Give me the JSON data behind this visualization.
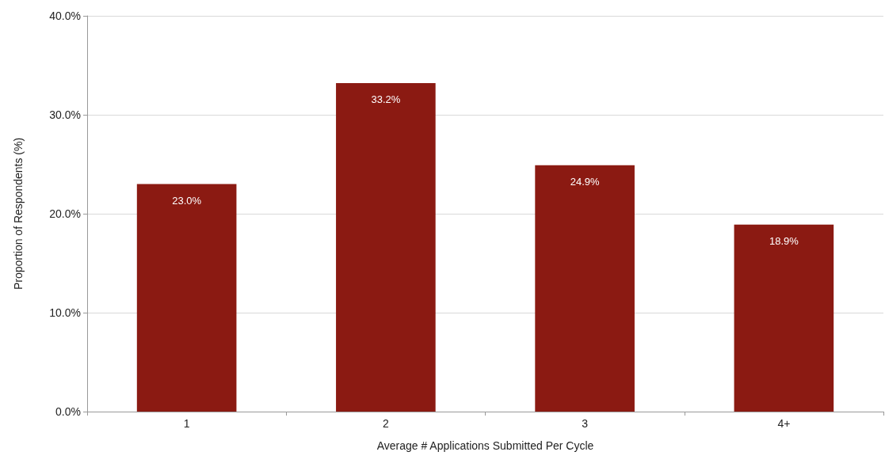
{
  "chart_data": {
    "type": "bar",
    "xlabel": "Average # Applications Submitted Per Cycle",
    "ylabel": "Proportion of Respondents (%)",
    "categories": [
      "1",
      "2",
      "3",
      "4+"
    ],
    "values": [
      23.0,
      33.2,
      24.9,
      18.9
    ],
    "value_labels": [
      "23.0%",
      "33.2%",
      "24.9%",
      "18.9%"
    ],
    "color": "#8b1a12",
    "ylim": [
      0,
      40
    ],
    "yticks": [
      {
        "value": 0,
        "label": "0.0%"
      },
      {
        "value": 10,
        "label": "10.0%"
      },
      {
        "value": 20,
        "label": "20.0%"
      },
      {
        "value": 30,
        "label": "30.0%"
      },
      {
        "value": 40,
        "label": "40.0%"
      }
    ],
    "grid": "y"
  }
}
